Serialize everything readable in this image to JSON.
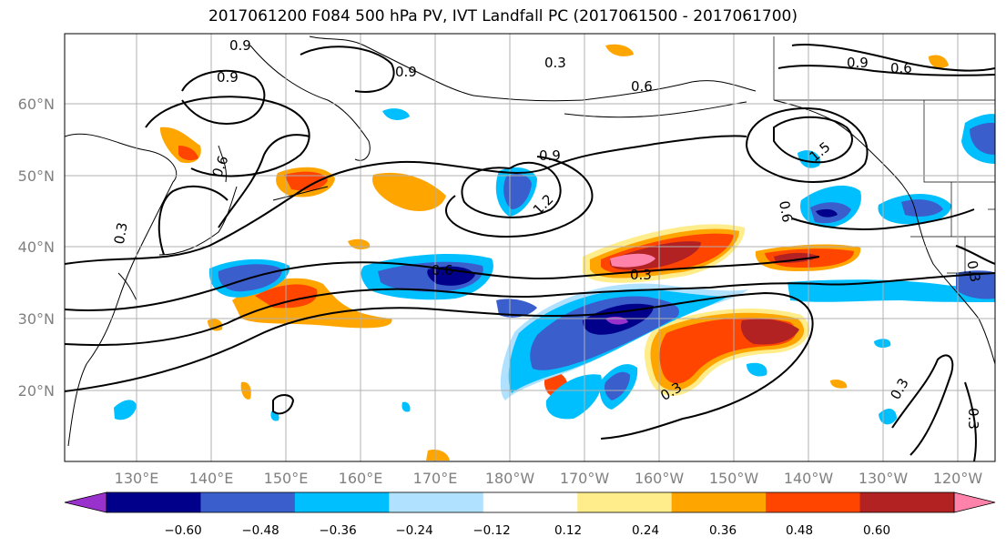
{
  "title": "2017061200 F084 500 hPa PV, IVT Landfall PC (2017061500 - 2017061700)",
  "map": {
    "lon_labels": [
      "130°E",
      "140°E",
      "150°E",
      "160°E",
      "170°E",
      "180°W",
      "170°W",
      "160°W",
      "150°W",
      "140°W",
      "130°W",
      "120°W"
    ],
    "lat_labels": [
      "60°N",
      "50°N",
      "40°N",
      "30°N",
      "20°N"
    ],
    "contour_labels": [
      "0.9",
      "0.9",
      "0.9",
      "0.3",
      "0.6",
      "0.6",
      "0.3",
      "0.9",
      "1.2",
      "0.6",
      "0.3",
      "0.6",
      "0.3",
      "0.9",
      "0.6",
      "1.5",
      "0.9",
      "0.6",
      "0.3",
      "0.3",
      "0.3",
      "0.3"
    ]
  },
  "colorbar": {
    "tick_labels": [
      "−0.60",
      "−0.48",
      "−0.36",
      "−0.24",
      "−0.12",
      "0.12",
      "0.24",
      "0.36",
      "0.48",
      "0.60"
    ],
    "colors": [
      "#9932cc",
      "#00008b",
      "#3a5fcd",
      "#00bfff",
      "#b0e2ff",
      "#ffffff",
      "#ffec8b",
      "#ffa500",
      "#ff4500",
      "#b22222",
      "#ff82ab"
    ]
  }
}
